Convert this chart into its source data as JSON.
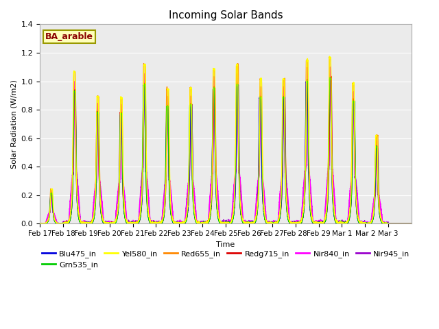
{
  "title": "Incoming Solar Bands",
  "xlabel": "Time",
  "ylabel": "Solar Radiation (W/m2)",
  "annotation": "BA_arable",
  "ylim": [
    0,
    1.4
  ],
  "background_color": "#ebebeb",
  "grid_color": "#ffffff",
  "series": [
    {
      "name": "Blu475_in",
      "color": "#0000dd",
      "lw": 1.0,
      "zorder": 5
    },
    {
      "name": "Grn535_in",
      "color": "#00cc00",
      "lw": 1.0,
      "zorder": 6
    },
    {
      "name": "Yel580_in",
      "color": "#ffff00",
      "lw": 1.0,
      "zorder": 7
    },
    {
      "name": "Red655_in",
      "color": "#ff8800",
      "lw": 1.0,
      "zorder": 4
    },
    {
      "name": "Redg715_in",
      "color": "#dd0000",
      "lw": 1.0,
      "zorder": 3
    },
    {
      "name": "Nir840_in",
      "color": "#ff00ff",
      "lw": 1.2,
      "zorder": 2
    },
    {
      "name": "Nir945_in",
      "color": "#9900cc",
      "lw": 1.0,
      "zorder": 1
    }
  ],
  "xtick_labels": [
    "Feb 17",
    "Feb 18",
    "Feb 19",
    "Feb 20",
    "Feb 21",
    "Feb 22",
    "Feb 23",
    "Feb 24",
    "Feb 25",
    "Feb 26",
    "Feb 27",
    "Feb 28",
    "Feb 29",
    "Mar 1",
    "Mar 2",
    "Mar 3"
  ],
  "peak_heights": [
    0.24,
    1.05,
    0.88,
    0.87,
    1.1,
    0.93,
    0.94,
    1.07,
    1.1,
    1.0,
    1.0,
    1.13,
    1.15,
    0.97,
    0.61,
    0.0
  ],
  "n_days": 16,
  "pts_per_day": 288,
  "annotation_color": "#8b0000",
  "annotation_bg": "#ffffbb",
  "annotation_edge": "#999900"
}
